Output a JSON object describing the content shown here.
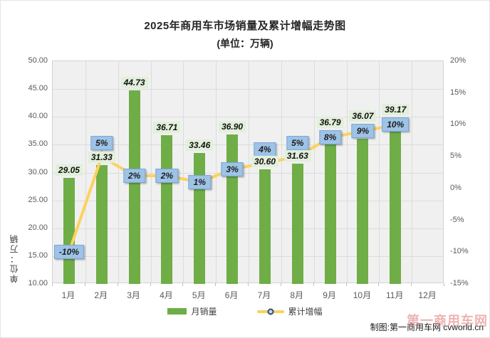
{
  "title_line1": "2025年商用车市场销量及累计增幅走势图",
  "title_line2": "(单位：万辆)",
  "chart_data": {
    "type": "bar+line",
    "title": "2025年商用车市场销量及累计增幅走势图",
    "subtitle": "(单位：万辆)",
    "y_axis_label": "单位：万辆",
    "categories": [
      "1月",
      "2月",
      "3月",
      "4月",
      "5月",
      "6月",
      "7月",
      "8月",
      "9月",
      "10月",
      "11月",
      "12月"
    ],
    "series": [
      {
        "name": "月销量",
        "type": "bar",
        "values": [
          29.05,
          31.33,
          44.73,
          36.71,
          33.46,
          36.9,
          30.6,
          31.63,
          36.79,
          36.07,
          39.17,
          null
        ]
      },
      {
        "name": "累计增幅",
        "type": "line",
        "unit": "%",
        "values": [
          -10,
          5,
          2,
          2,
          1,
          3,
          4,
          5,
          8,
          9,
          10,
          null
        ]
      }
    ],
    "bar_labels": [
      "29.05",
      "31.33",
      "44.73",
      "36.71",
      "33.46",
      "36.90",
      "30.60",
      "31.63",
      "36.79",
      "36.07",
      "39.17",
      null
    ],
    "pct_labels": [
      "-10%",
      "5%",
      "2%",
      "2%",
      "1%",
      "3%",
      "4%",
      "5%",
      "8%",
      "9%",
      "10%",
      null
    ],
    "pct_label_placement": [
      "center",
      "above",
      "center",
      "center",
      "center",
      "center",
      "above",
      "above",
      "center",
      "center",
      "center",
      null
    ],
    "left_axis": {
      "min": 10,
      "max": 50,
      "step": 5,
      "ticks": [
        "50.00",
        "45.00",
        "40.00",
        "35.00",
        "30.00",
        "25.00",
        "20.00",
        "15.00",
        "10.00"
      ]
    },
    "right_axis": {
      "min": -15,
      "max": 20,
      "step": 5,
      "ticks": [
        "20%",
        "15%",
        "10%",
        "5%",
        "0%",
        "-5%",
        "-10%",
        "-15%"
      ]
    },
    "grid": "both",
    "legend_position": "bottom",
    "caption": "制图:第一商用车网 cvworld.cn",
    "watermark": "第一商用车网",
    "colors": {
      "bar": "#6FAD47",
      "line": "#FBD25C",
      "bar_label_bg": "#E2EFDA",
      "pct_label_bg": "#9DC3E6",
      "pct_label_border": "#7CA6D7",
      "plot_bg": "#F0F0F0",
      "grid": "#DCDCDC",
      "plot_border": "#D2D2D2",
      "axis_text": "#595959",
      "leader": "#999999",
      "marker_stroke": "#33506B",
      "marker_fill": "#BDD7EE",
      "watermark": "#DD6A6A"
    }
  }
}
